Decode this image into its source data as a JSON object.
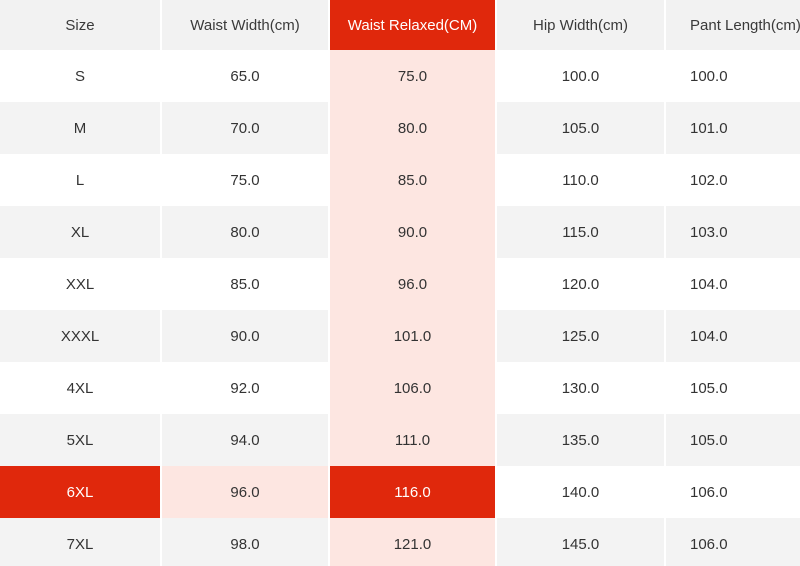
{
  "table": {
    "headers": [
      "Size",
      "Waist Width(cm)",
      "Waist Relaxed(CM)",
      "Hip Width(cm)",
      "Pant Length(cm)"
    ],
    "rows": [
      [
        "S",
        "65.0",
        "75.0",
        "100.0",
        "100.0"
      ],
      [
        "M",
        "70.0",
        "80.0",
        "105.0",
        "101.0"
      ],
      [
        "L",
        "75.0",
        "85.0",
        "110.0",
        "102.0"
      ],
      [
        "XL",
        "80.0",
        "90.0",
        "115.0",
        "103.0"
      ],
      [
        "XXL",
        "85.0",
        "96.0",
        "120.0",
        "104.0"
      ],
      [
        "XXXL",
        "90.0",
        "101.0",
        "125.0",
        "104.0"
      ],
      [
        "4XL",
        "92.0",
        "106.0",
        "130.0",
        "105.0"
      ],
      [
        "5XL",
        "94.0",
        "111.0",
        "135.0",
        "105.0"
      ],
      [
        "6XL",
        "96.0",
        "116.0",
        "140.0",
        "106.0"
      ],
      [
        "7XL",
        "98.0",
        "121.0",
        "145.0",
        "106.0"
      ]
    ],
    "highlight_column": 2,
    "highlight_row": 8
  },
  "colors": {
    "accent": "#e0280c",
    "accent_tint": "#fde6e1",
    "row_stripe": "#f3f3f3",
    "text": "#333333"
  }
}
